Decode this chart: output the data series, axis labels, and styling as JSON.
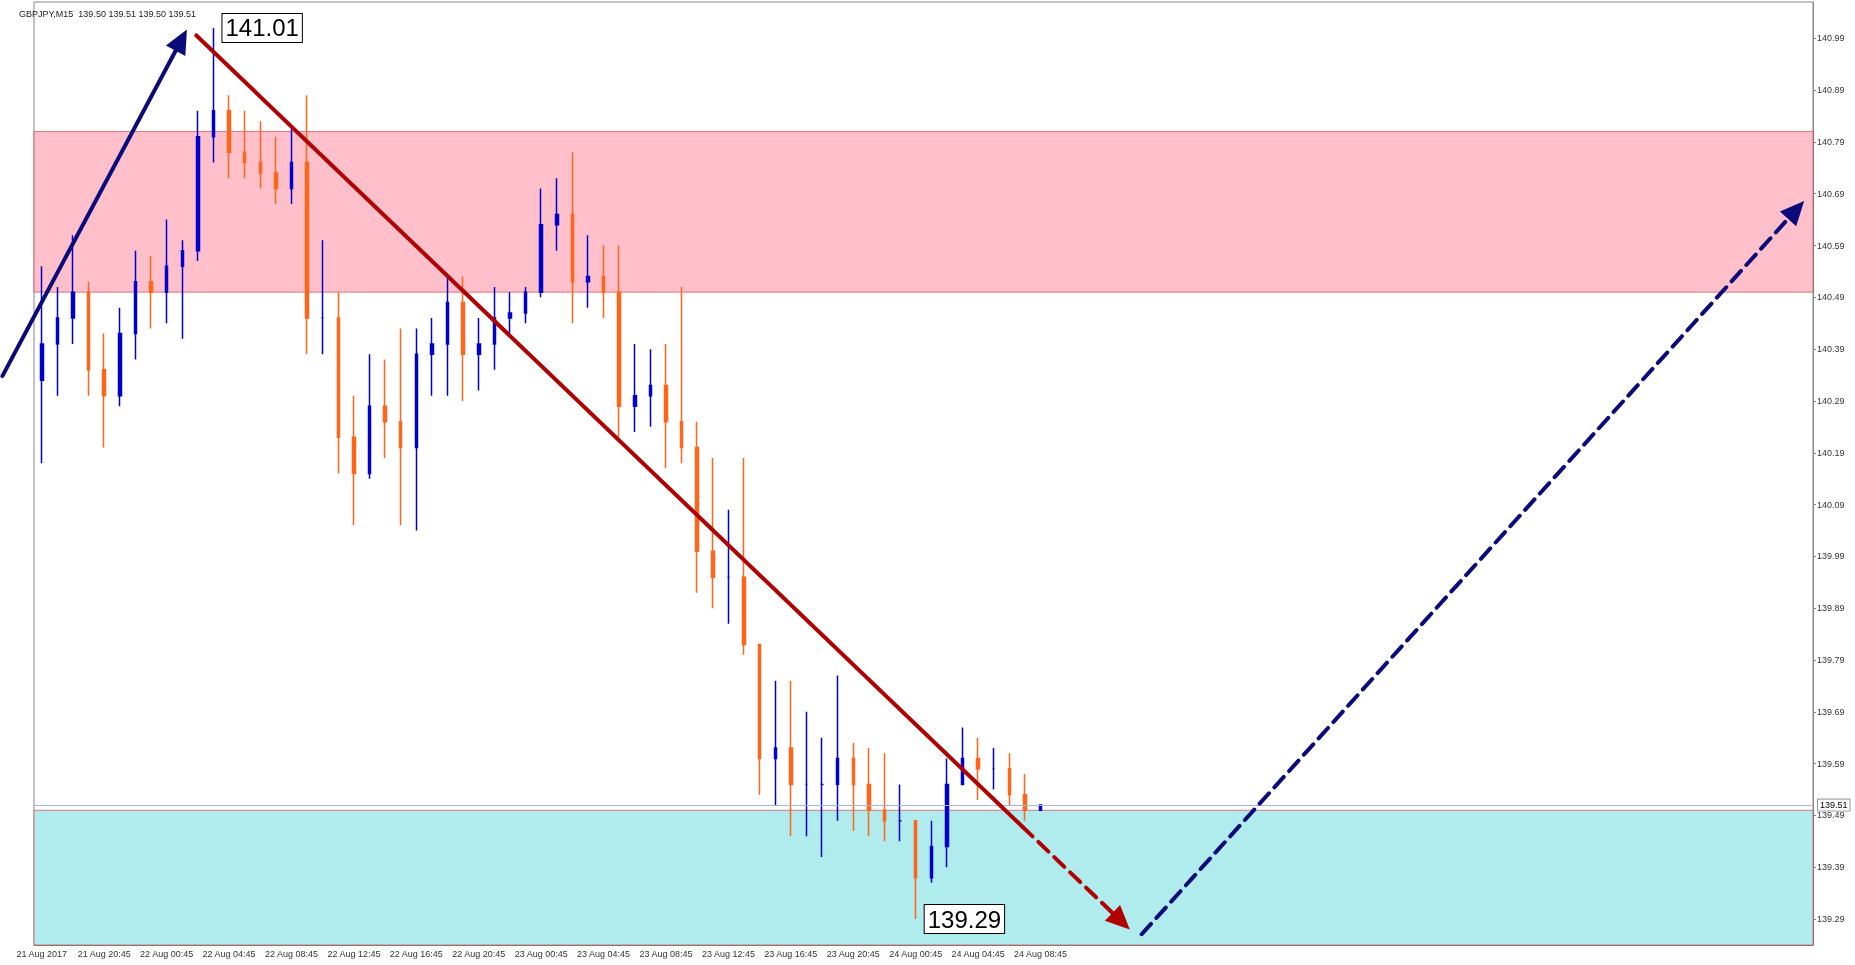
{
  "chart_data": {
    "type": "candlestick",
    "title": "GBPJPY,M15  139.50 139.51 139.50 139.51",
    "categories": [
      "21 Aug 2017",
      null,
      null,
      null,
      "21 Aug 20:45",
      null,
      null,
      null,
      "22 Aug 00:45",
      null,
      null,
      null,
      "22 Aug 04:45",
      null,
      null,
      null,
      "22 Aug 08:45",
      null,
      null,
      null,
      "22 Aug 12:45",
      null,
      null,
      null,
      "22 Aug 16:45",
      null,
      null,
      null,
      "22 Aug 20:45",
      null,
      null,
      null,
      "23 Aug 00:45",
      null,
      null,
      null,
      "23 Aug 04:45",
      null,
      null,
      null,
      "23 Aug 08:45",
      null,
      null,
      null,
      "23 Aug 12:45",
      null,
      null,
      null,
      "23 Aug 16:45",
      null,
      null,
      null,
      "23 Aug 20:45",
      null,
      null,
      null,
      "24 Aug 00:45",
      null,
      null,
      null,
      "24 Aug 04:45",
      null,
      null,
      null,
      "24 Aug 08:45",
      null,
      null,
      null,
      null,
      null,
      null,
      null,
      null,
      null,
      null,
      null,
      null,
      null,
      null,
      null,
      null,
      null,
      null,
      null,
      null,
      null,
      null,
      null,
      null,
      null,
      null,
      null,
      null,
      null,
      null,
      null,
      null,
      null,
      null,
      null,
      null,
      null,
      null,
      null,
      null,
      null,
      null,
      null,
      null,
      null,
      null,
      null,
      null,
      null
    ],
    "ohlc": [
      [
        140.33,
        140.55,
        140.17,
        140.4
      ],
      [
        140.4,
        140.51,
        140.3,
        140.45
      ],
      [
        140.45,
        140.61,
        140.4,
        140.5
      ],
      [
        140.5,
        140.52,
        140.3,
        140.35
      ],
      [
        140.35,
        140.42,
        140.2,
        140.3
      ],
      [
        140.3,
        140.47,
        140.28,
        140.42
      ],
      [
        140.42,
        140.58,
        140.37,
        140.52
      ],
      [
        140.52,
        140.57,
        140.43,
        140.5
      ],
      [
        140.5,
        140.64,
        140.44,
        140.55
      ],
      [
        140.55,
        140.6,
        140.41,
        140.58
      ],
      [
        140.58,
        140.85,
        140.56,
        140.8
      ],
      [
        140.8,
        141.01,
        140.75,
        140.85
      ],
      [
        140.85,
        140.88,
        140.72,
        140.77
      ],
      [
        140.77,
        140.85,
        140.72,
        140.75
      ],
      [
        140.75,
        140.83,
        140.7,
        140.73
      ],
      [
        140.73,
        140.8,
        140.67,
        140.7
      ],
      [
        140.7,
        140.82,
        140.67,
        140.75
      ],
      [
        140.75,
        140.88,
        140.38,
        140.45
      ],
      [
        140.45,
        140.6,
        140.38,
        140.45
      ],
      [
        140.45,
        140.5,
        140.15,
        140.22
      ],
      [
        140.22,
        140.3,
        140.05,
        140.15
      ],
      [
        140.15,
        140.38,
        140.14,
        140.28
      ],
      [
        140.28,
        140.37,
        140.18,
        140.25
      ],
      [
        140.25,
        140.43,
        140.05,
        140.2
      ],
      [
        140.2,
        140.43,
        140.04,
        140.38
      ],
      [
        140.38,
        140.45,
        140.3,
        140.4
      ],
      [
        140.4,
        140.53,
        140.3,
        140.48
      ],
      [
        140.48,
        140.53,
        140.29,
        140.38
      ],
      [
        140.38,
        140.45,
        140.31,
        140.4
      ],
      [
        140.4,
        140.51,
        140.35,
        140.45
      ],
      [
        140.45,
        140.5,
        140.42,
        140.46
      ],
      [
        140.46,
        140.51,
        140.44,
        140.5
      ],
      [
        140.5,
        140.7,
        140.49,
        140.63
      ],
      [
        140.63,
        140.72,
        140.58,
        140.65
      ],
      [
        140.65,
        140.77,
        140.44,
        140.52
      ],
      [
        140.52,
        140.61,
        140.47,
        140.53
      ],
      [
        140.53,
        140.59,
        140.45,
        140.5
      ],
      [
        140.5,
        140.59,
        140.22,
        140.28
      ],
      [
        140.28,
        140.4,
        140.23,
        140.3
      ],
      [
        140.3,
        140.39,
        140.24,
        140.32
      ],
      [
        140.32,
        140.4,
        140.16,
        140.25
      ],
      [
        140.25,
        140.51,
        140.17,
        140.2
      ],
      [
        140.2,
        140.25,
        139.92,
        140.0
      ],
      [
        140.0,
        140.18,
        139.89,
        139.95
      ],
      [
        139.95,
        140.08,
        139.86,
        139.95
      ],
      [
        139.95,
        140.18,
        139.8,
        139.82
      ],
      [
        139.82,
        139.82,
        139.53,
        139.6
      ],
      [
        139.6,
        139.75,
        139.51,
        139.62
      ],
      [
        139.62,
        139.75,
        139.45,
        139.55
      ],
      [
        139.55,
        139.69,
        139.45,
        139.55
      ],
      [
        139.55,
        139.64,
        139.41,
        139.55
      ],
      [
        139.55,
        139.76,
        139.48,
        139.6
      ],
      [
        139.6,
        139.63,
        139.46,
        139.55
      ],
      [
        139.55,
        139.62,
        139.45,
        139.5
      ],
      [
        139.5,
        139.61,
        139.44,
        139.48
      ],
      [
        139.48,
        139.55,
        139.44,
        139.48
      ],
      [
        139.48,
        139.48,
        139.29,
        139.37
      ],
      [
        139.37,
        139.48,
        139.36,
        139.43
      ],
      [
        139.43,
        139.6,
        139.39,
        139.55
      ],
      [
        139.55,
        139.66,
        139.55,
        139.6
      ],
      [
        139.6,
        139.64,
        139.52,
        139.58
      ],
      [
        139.58,
        139.62,
        139.54,
        139.58
      ],
      [
        139.58,
        139.61,
        139.51,
        139.53
      ],
      [
        139.53,
        139.57,
        139.48,
        139.5
      ],
      [
        139.5,
        139.51,
        139.5,
        139.51
      ],
      null,
      null,
      null,
      null,
      null,
      null,
      null,
      null,
      null,
      null,
      null,
      null,
      null,
      null,
      null,
      null,
      null,
      null,
      null,
      null,
      null,
      null,
      null,
      null,
      null,
      null,
      null,
      null,
      null,
      null,
      null,
      null,
      null,
      null,
      null,
      null,
      null,
      null,
      null,
      null,
      null,
      null,
      null,
      null,
      null,
      null,
      null,
      null,
      null
    ],
    "colors": [
      "#0000cd",
      "#0000cd",
      "#0000cd",
      "#ff6619",
      "#ff6619",
      "#0000cd",
      "#0000cd",
      "#ff6619",
      "#0000cd",
      "#0000cd",
      "#0000cd",
      "#0000cd",
      "#ff6619",
      "#ff6619",
      "#ff6619",
      "#ff6619",
      "#0000cd",
      "#ff6619",
      "#0000cd",
      "#ff6619",
      "#ff6619",
      "#0000cd",
      "#ff6619",
      "#ff6619",
      "#0000cd",
      "#0000cd",
      "#0000cd",
      "#ff6619",
      "#0000cd",
      "#0000cd",
      "#0000cd",
      "#0000cd",
      "#0000cd",
      "#0000cd",
      "#ff6619",
      "#0000cd",
      "#ff6619",
      "#ff6619",
      "#0000cd",
      "#0000cd",
      "#ff6619",
      "#ff6619",
      "#ff6619",
      "#ff6619",
      "#0000cd",
      "#ff6619",
      "#ff6619",
      "#0000cd",
      "#ff6619",
      "#0000cd",
      "#0000cd",
      "#0000cd",
      "#ff6619",
      "#ff6619",
      "#ff6619",
      "#0000cd",
      "#ff6619",
      "#0000cd",
      "#0000cd",
      "#0000cd",
      "#ff6619",
      "#0000cd",
      "#ff6619",
      "#ff6619",
      "#0000cd",
      null,
      null,
      null,
      null,
      null,
      null,
      null,
      null,
      null,
      null,
      null,
      null,
      null,
      null,
      null,
      null,
      null,
      null,
      null,
      null,
      null,
      null,
      null,
      null,
      null,
      null,
      null,
      null,
      null,
      null,
      null,
      null,
      null,
      null,
      null,
      null,
      null,
      null,
      null,
      null,
      null,
      null,
      null,
      null,
      null,
      null,
      null,
      null,
      null
    ],
    "ylim": [
      139.24,
      141.06
    ],
    "yticks": [
      139.29,
      139.39,
      139.49,
      139.59,
      139.69,
      139.79,
      139.89,
      139.99,
      140.09,
      140.19,
      140.29,
      140.39,
      140.49,
      140.59,
      140.69,
      140.79,
      140.89,
      140.99
    ],
    "bands": [
      {
        "axis": "y",
        "from": 140.5,
        "to": 140.81,
        "color": "#ffc0cb"
      },
      {
        "axis": "y",
        "from": 139.24,
        "to": 139.5,
        "color": "#b0ebee"
      }
    ],
    "ref_lines": [
      {
        "axis": "y",
        "value": 139.51,
        "label": "139.51",
        "color": "#9fb8e8"
      }
    ],
    "annotations": [
      "141.01",
      "139.29"
    ]
  }
}
